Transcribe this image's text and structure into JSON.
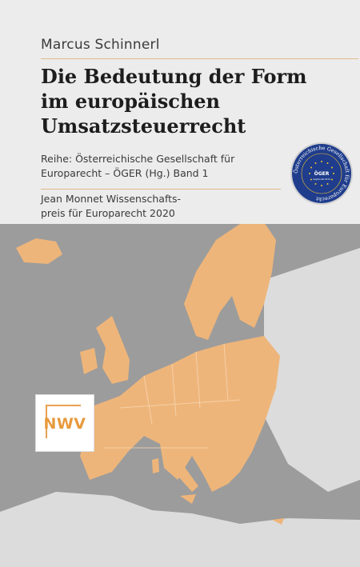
{
  "author": "Marcus Schinnerl",
  "title_lines": [
    "Die Bedeutung der Form",
    "im europäischen",
    "Umsatzsteuerrecht"
  ],
  "series_lines": [
    "Reihe: Österreichische Gesellschaft für",
    "Europarecht – ÖGER (Hg.)  Band 1"
  ],
  "prize_lines": [
    "Jean Monnet Wissenschafts-",
    "preis für Europarecht 2020"
  ],
  "seal": {
    "ring_text": "Österreichische Gesellschaft für Europarecht",
    "center_text": "ÖGER",
    "sub_text": "Gegründet 2019"
  },
  "logo_text": "NWV",
  "colors": {
    "background": "#ececec",
    "map_sea": "#9c9c9c",
    "map_land_eu": "#eeb57a",
    "map_land_other": "#dcdcdc",
    "accent_rule": "#e2b98a",
    "seal_blue": "#1f3d8c",
    "logo_orange": "#e89a3c"
  }
}
